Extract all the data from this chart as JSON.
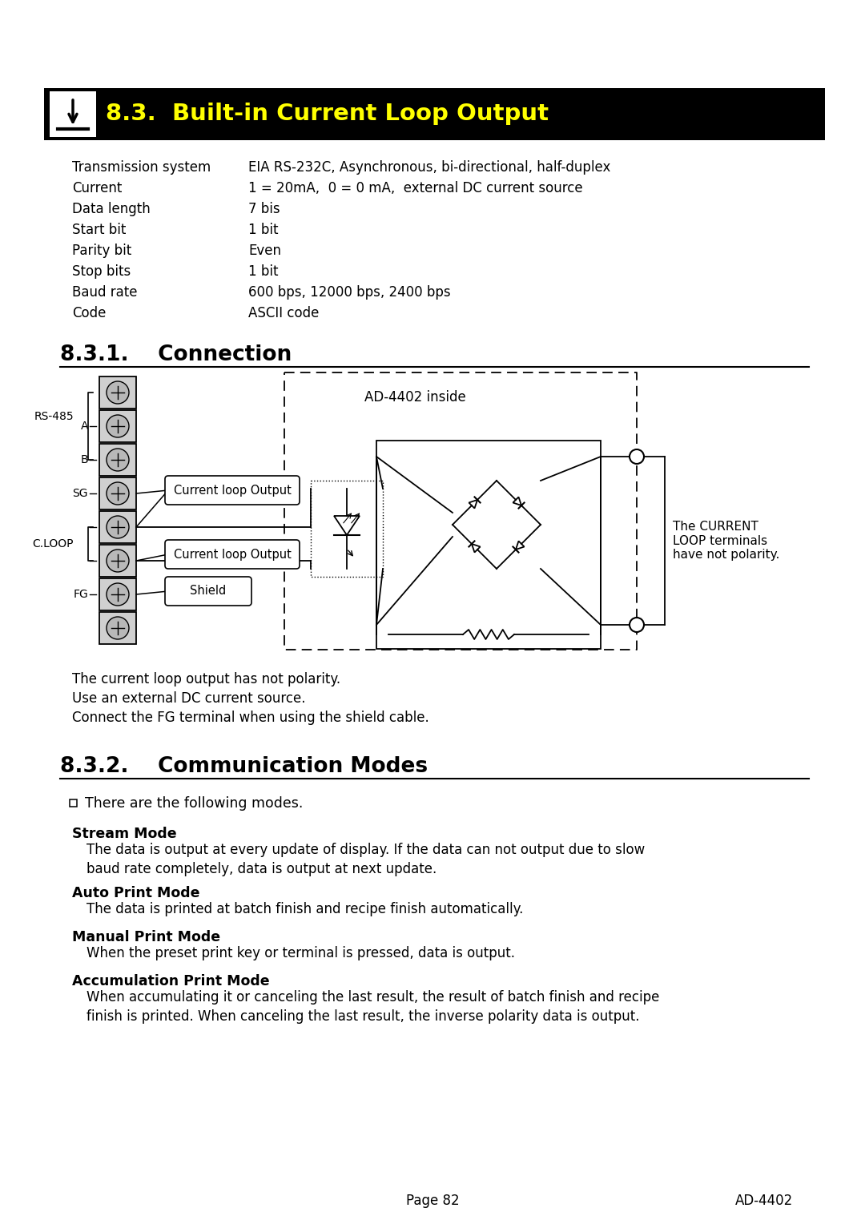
{
  "page_bg": "#ffffff",
  "header_bg": "#000000",
  "header_text": "8.3.  Built-in Current Loop Output",
  "header_text_color": "#ffff00",
  "section_title_831": "8.3.1.    Connection",
  "section_title_832": "8.3.2.    Communication Modes",
  "spec_labels": [
    "Transmission system",
    "Current",
    "Data length",
    "Start bit",
    "Parity bit",
    "Stop bits",
    "Baud rate",
    "Code"
  ],
  "spec_values": [
    "EIA RS-232C, Asynchronous, bi-directional, half-duplex",
    "1 = 20mA,  0 = 0 mA,  external DC current source",
    "7 bis",
    "1 bit",
    "Even",
    "1 bit",
    "600 bps, 12000 bps, 2400 bps",
    "ASCII code"
  ],
  "connection_notes": [
    "The current loop output has not polarity.",
    "Use an external DC current source.",
    "Connect the FG terminal when using the shield cable."
  ],
  "ad4402_inside_label": "AD-4402 inside",
  "current_loop_note": "The CURRENT\nLOOP terminals\nhave not polarity.",
  "comm_bullet": "There are the following modes.",
  "modes": [
    {
      "title": "Stream Mode",
      "text": "The data is output at every update of display. If the data can not output due to slow\nbaud rate completely, data is output at next update."
    },
    {
      "title": "Auto Print Mode",
      "text": "The data is printed at batch finish and recipe finish automatically."
    },
    {
      "title": "Manual Print Mode",
      "text": "When the preset print key or terminal is pressed, data is output."
    },
    {
      "title": "Accumulation Print Mode",
      "text": "When accumulating it or canceling the last result, the result of batch finish and recipe\nfinish is printed. When canceling the last result, the inverse polarity data is output."
    }
  ],
  "footer_left": "Page 82",
  "footer_right": "AD-4402"
}
